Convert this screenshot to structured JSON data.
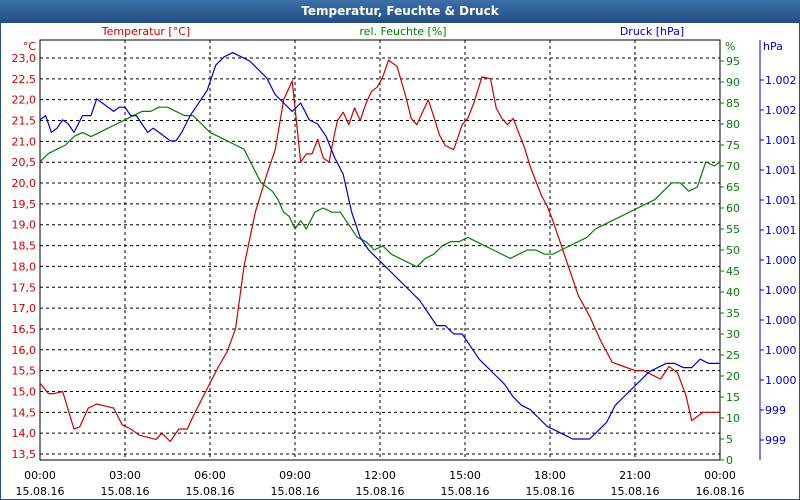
{
  "window": {
    "title": "Temperatur, Feuchte & Druck"
  },
  "chart_data": {
    "type": "line",
    "title": "Temperatur, Feuchte & Druck",
    "grid": true,
    "x_axis": {
      "range": [
        "15.08.16 00:00",
        "16.08.16 00:00"
      ],
      "ticks": [
        {
          "time": "00:00",
          "date": "15.08.16"
        },
        {
          "time": "03:00",
          "date": "15.08.16"
        },
        {
          "time": "06:00",
          "date": "15.08.16"
        },
        {
          "time": "09:00",
          "date": "15.08.16"
        },
        {
          "time": "12:00",
          "date": "15.08.16"
        },
        {
          "time": "15:00",
          "date": "15.08.16"
        },
        {
          "time": "18:00",
          "date": "15.08.16"
        },
        {
          "time": "21:00",
          "date": "15.08.16"
        },
        {
          "time": "00:00",
          "date": "16.08.16"
        }
      ]
    },
    "y_axes": {
      "temperature": {
        "unit": "°C",
        "ylim": [
          13.5,
          23.0
        ],
        "color": "#cc0000",
        "ticks": [
          "13,5",
          "14,0",
          "14,5",
          "15,0",
          "15,5",
          "16,0",
          "16,5",
          "17,0",
          "17,5",
          "18,0",
          "18,5",
          "19,0",
          "19,5",
          "20,0",
          "20,5",
          "21,0",
          "21,5",
          "22,0",
          "22,5",
          "23,0"
        ]
      },
      "humidity": {
        "unit": "%",
        "ylim": [
          0,
          100
        ],
        "color": "#008000",
        "ticks": [
          "0",
          "5",
          "10",
          "15",
          "20",
          "25",
          "30",
          "35",
          "40",
          "45",
          "50",
          "55",
          "60",
          "65",
          "70",
          "75",
          "80",
          "85",
          "90",
          "95"
        ]
      },
      "pressure": {
        "unit": "hPa",
        "color": "#0000cc",
        "ticks": [
          "999",
          "999",
          "1.000",
          "1.000",
          "1.000",
          "1.000",
          "1.000",
          "1.001",
          "1.001",
          "1.001",
          "1.001",
          "1.002",
          "1.002"
        ]
      }
    },
    "legend": {
      "temperature": "Temperatur [°C]",
      "humidity": "rel. Feuchte [%]",
      "pressure": "Druck [hPa]"
    },
    "series": [
      {
        "name": "Temperatur [°C]",
        "axis": "temperature",
        "color": "#cc0000",
        "x_hours": [
          0,
          0.3,
          0.5,
          0.8,
          1.0,
          1.2,
          1.4,
          1.7,
          2.0,
          2.3,
          2.6,
          2.9,
          3.2,
          3.5,
          3.8,
          4.1,
          4.3,
          4.6,
          4.9,
          5.2,
          5.4,
          5.7,
          6.0,
          6.3,
          6.6,
          6.9,
          7.2,
          7.6,
          8.0,
          8.3,
          8.6,
          8.9,
          9.2,
          9.4,
          9.6,
          9.8,
          10.0,
          10.2,
          10.4,
          10.5,
          10.7,
          10.9,
          11.1,
          11.3,
          11.5,
          11.7,
          11.9,
          12.1,
          12.3,
          12.6,
          12.9,
          13.1,
          13.3,
          13.5,
          13.7,
          13.9,
          14.1,
          14.3,
          14.6,
          14.9,
          15.1,
          15.3,
          15.6,
          15.9,
          16.1,
          16.3,
          16.5,
          16.7,
          16.9,
          17.1,
          17.3,
          17.5,
          17.7,
          17.9,
          18.1,
          18.4,
          18.7,
          19.0,
          19.4,
          19.8,
          20.2,
          20.6,
          21.0,
          21.3,
          21.6,
          21.9,
          22.2,
          22.5,
          22.8,
          23.0,
          23.2,
          23.4,
          23.6,
          23.8,
          24.0
        ],
        "values": [
          15.2,
          14.95,
          14.95,
          15.0,
          14.55,
          14.1,
          14.15,
          14.6,
          14.7,
          14.65,
          14.6,
          14.2,
          14.1,
          13.95,
          13.9,
          13.85,
          14.0,
          13.8,
          14.1,
          14.1,
          14.4,
          14.8,
          15.2,
          15.6,
          15.95,
          16.5,
          18.0,
          19.3,
          20.2,
          20.8,
          22.0,
          22.45,
          20.5,
          20.7,
          20.7,
          21.05,
          20.6,
          20.5,
          21.2,
          21.5,
          21.7,
          21.4,
          21.8,
          21.5,
          21.9,
          22.2,
          22.3,
          22.55,
          22.95,
          22.8,
          22.1,
          21.55,
          21.4,
          21.7,
          22.0,
          21.6,
          21.15,
          20.9,
          20.8,
          21.4,
          21.55,
          21.9,
          22.55,
          22.5,
          21.8,
          21.55,
          21.4,
          21.55,
          21.2,
          20.85,
          20.4,
          20.05,
          19.7,
          19.45,
          19.1,
          18.5,
          17.9,
          17.3,
          16.8,
          16.2,
          15.7,
          15.6,
          15.5,
          15.5,
          15.4,
          15.3,
          15.6,
          15.45,
          14.9,
          14.3,
          14.4,
          14.5,
          14.5,
          14.5,
          14.5
        ]
      },
      {
        "name": "rel. Feuchte [%]",
        "axis": "humidity",
        "color": "#008000",
        "x_hours": [
          0,
          0.3,
          0.6,
          0.9,
          1.2,
          1.5,
          1.8,
          2.1,
          2.4,
          2.7,
          3.0,
          3.3,
          3.6,
          3.9,
          4.2,
          4.5,
          4.8,
          5.1,
          5.4,
          5.7,
          6.0,
          6.3,
          6.6,
          6.9,
          7.2,
          7.5,
          7.8,
          8.0,
          8.2,
          8.4,
          8.6,
          8.8,
          9.0,
          9.2,
          9.4,
          9.7,
          10.0,
          10.3,
          10.6,
          10.9,
          11.2,
          11.5,
          11.8,
          12.1,
          12.4,
          12.7,
          13.0,
          13.3,
          13.6,
          13.9,
          14.2,
          14.5,
          14.8,
          15.1,
          15.4,
          15.7,
          16.0,
          16.3,
          16.6,
          16.9,
          17.2,
          17.5,
          17.8,
          18.1,
          18.4,
          18.7,
          19.0,
          19.3,
          19.6,
          19.9,
          20.2,
          20.5,
          20.8,
          21.1,
          21.4,
          21.7,
          22.0,
          22.3,
          22.6,
          22.9,
          23.2,
          23.5,
          23.8,
          24.0
        ],
        "values": [
          71,
          73,
          74,
          75,
          77,
          78,
          77,
          78,
          79,
          80,
          81,
          82,
          83,
          83,
          84,
          84,
          83,
          82,
          82,
          80,
          78,
          77,
          76,
          75,
          74,
          70,
          66,
          65,
          64,
          62,
          59,
          58,
          55,
          57,
          55,
          59,
          60,
          59,
          59,
          56,
          53,
          52,
          50,
          51,
          49,
          48,
          47,
          46,
          48,
          49,
          51,
          52,
          52,
          53,
          52,
          51,
          50,
          49,
          48,
          49,
          50,
          50,
          49,
          49,
          50,
          51,
          52,
          53,
          55,
          56,
          57,
          58,
          59,
          60,
          61,
          62,
          64,
          66,
          66,
          64,
          65,
          71,
          70,
          71
        ]
      },
      {
        "name": "Druck [hPa]",
        "axis": "pressure",
        "color": "#0000cc",
        "x_hours": [
          0,
          0.2,
          0.4,
          0.6,
          0.8,
          1.0,
          1.2,
          1.5,
          1.8,
          2.0,
          2.2,
          2.4,
          2.6,
          2.8,
          3.0,
          3.2,
          3.4,
          3.6,
          3.8,
          4.0,
          4.2,
          4.4,
          4.6,
          4.8,
          5.0,
          5.3,
          5.6,
          5.9,
          6.2,
          6.5,
          6.8,
          7.1,
          7.4,
          7.7,
          8.0,
          8.3,
          8.6,
          8.9,
          9.2,
          9.5,
          9.8,
          10.1,
          10.4,
          10.7,
          11.0,
          11.3,
          11.6,
          11.9,
          12.2,
          12.5,
          12.8,
          13.1,
          13.4,
          13.7,
          14.0,
          14.3,
          14.6,
          14.9,
          15.2,
          15.5,
          15.8,
          16.1,
          16.4,
          16.7,
          17.0,
          17.3,
          17.6,
          17.9,
          18.2,
          18.5,
          18.8,
          19.1,
          19.4,
          19.7,
          20.0,
          20.3,
          20.6,
          20.9,
          21.2,
          21.5,
          21.8,
          22.1,
          22.4,
          22.7,
          23.0,
          23.3,
          23.6,
          24.0
        ],
        "values": [
          81,
          82,
          78,
          79,
          81,
          80,
          78,
          82,
          82,
          86,
          85,
          84,
          83,
          84,
          84,
          82,
          82,
          80,
          78,
          79,
          78,
          77,
          76,
          76,
          78,
          82,
          85,
          88,
          94,
          96,
          97,
          96,
          95,
          93,
          91,
          87,
          85,
          83,
          85,
          81,
          80,
          77,
          72,
          68,
          59,
          53,
          50,
          48,
          46,
          44,
          42,
          40,
          38,
          35,
          32,
          32,
          30,
          30,
          27,
          24,
          22,
          20,
          18,
          15,
          13,
          12,
          10,
          8,
          7,
          6,
          5,
          5,
          5,
          7,
          9,
          13,
          15,
          17,
          19,
          21,
          22,
          23,
          23,
          22,
          22,
          24,
          23,
          23
        ]
      }
    ]
  }
}
